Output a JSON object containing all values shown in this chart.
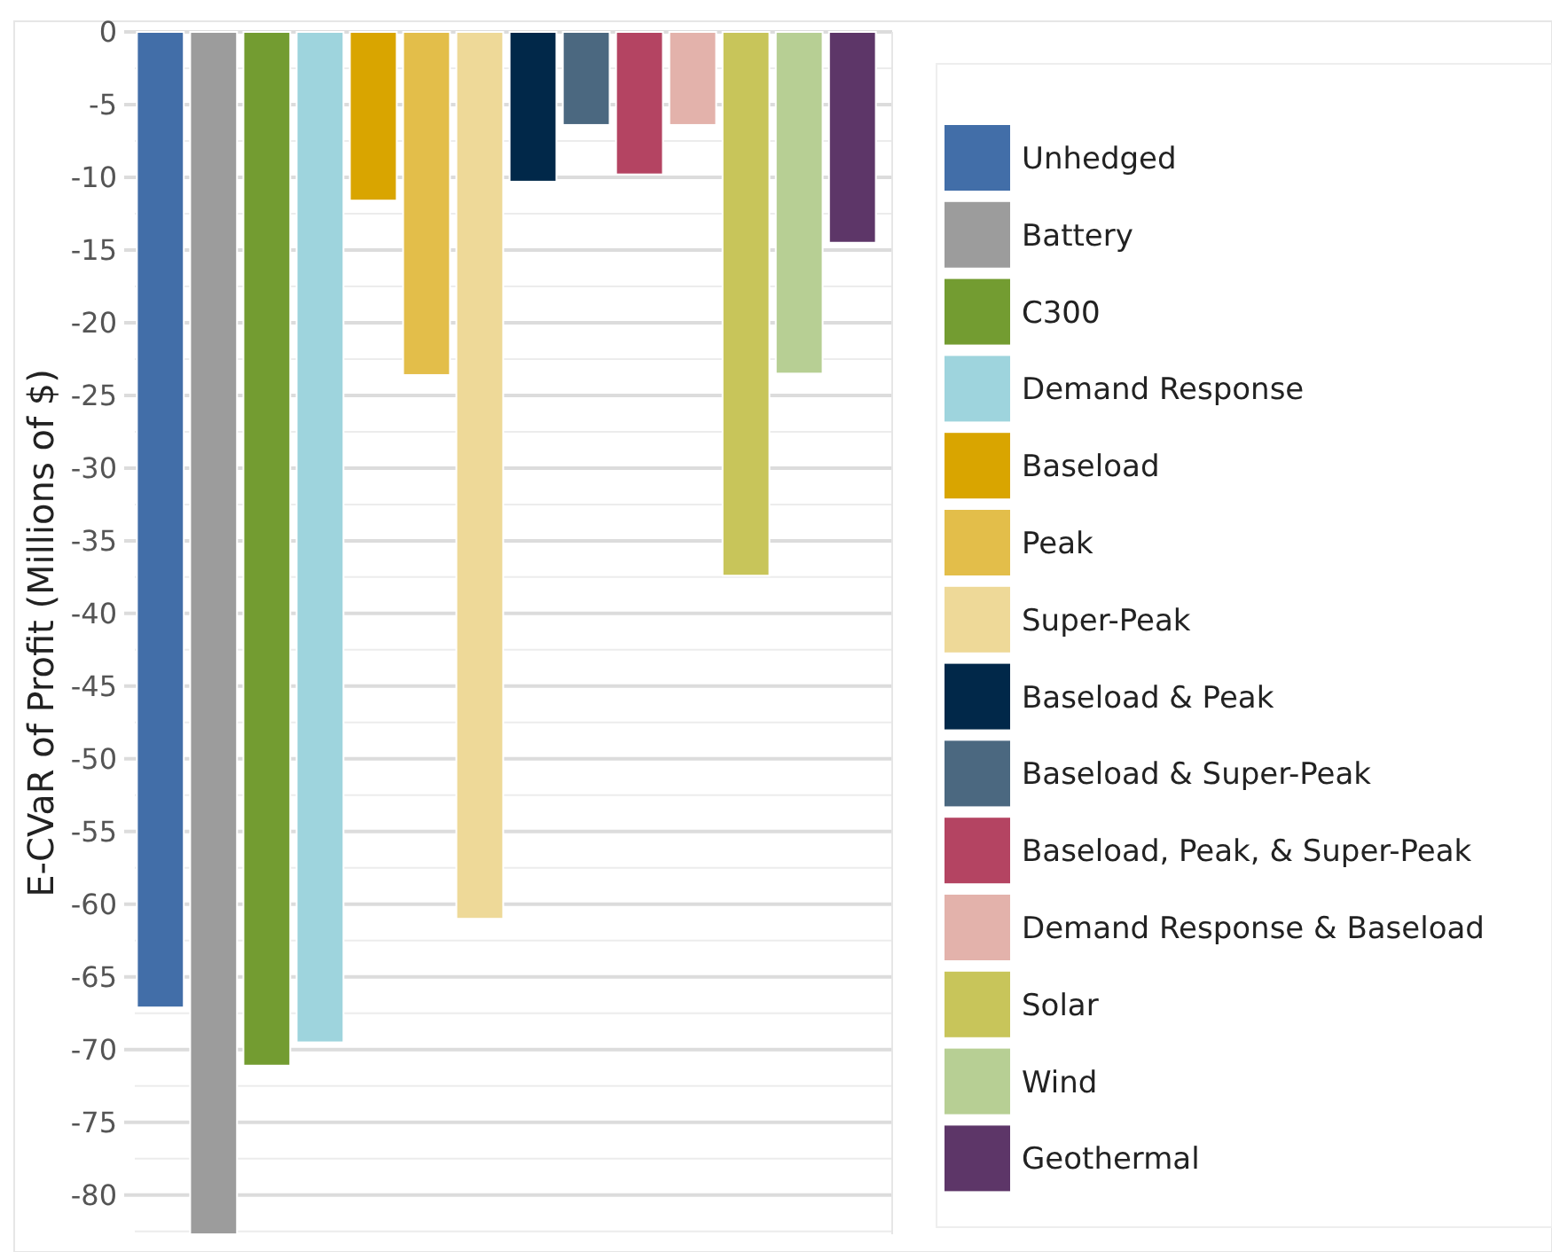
{
  "chart_data": {
    "type": "bar",
    "ylabel": "E-CVaR of Profit (Millions of $)",
    "categories": [
      null
    ],
    "series": [
      {
        "name": "Unhedged",
        "color": "#426ea8",
        "values": [
          -67.1
        ]
      },
      {
        "name": "Battery",
        "color": "#9c9c9c",
        "values": [
          -82.7
        ]
      },
      {
        "name": "C300",
        "color": "#739c31",
        "values": [
          -71.1
        ]
      },
      {
        "name": "Demand Response",
        "color": "#9ed4dd",
        "values": [
          -69.5
        ]
      },
      {
        "name": "Baseload",
        "color": "#d9a500",
        "values": [
          -11.6
        ]
      },
      {
        "name": "Peak",
        "color": "#e3be4a",
        "values": [
          -23.6
        ]
      },
      {
        "name": "Super-Peak",
        "color": "#eed998",
        "values": [
          -61.0
        ]
      },
      {
        "name": "Baseload & Peak",
        "color": "#012849",
        "values": [
          -10.3
        ]
      },
      {
        "name": "Baseload & Super-Peak",
        "color": "#4b6880",
        "values": [
          -6.4
        ]
      },
      {
        "name": "Baseload, Peak, & Super-Peak",
        "color": "#b44462",
        "values": [
          -9.8
        ]
      },
      {
        "name": "Demand Response & Baseload",
        "color": "#e3b2ab",
        "values": [
          -6.4
        ]
      },
      {
        "name": "Solar",
        "color": "#c8c55a",
        "values": [
          -37.4
        ]
      },
      {
        "name": "Wind",
        "color": "#b7cf94",
        "values": [
          -23.5
        ]
      },
      {
        "name": "Geothermal",
        "color": "#5d3668",
        "values": [
          -14.5
        ]
      }
    ],
    "ylim": [
      -82.7,
      0
    ],
    "yticks": [
      0,
      {
        "value": -2.5,
        "label": null
      },
      -5,
      {
        "value": -7.5,
        "label": null
      },
      -10,
      {
        "value": -12.5,
        "label": null
      },
      -15,
      {
        "value": -17.5,
        "label": null
      },
      -20,
      {
        "value": -22.5,
        "label": null
      },
      -25,
      {
        "value": -27.5,
        "label": null
      },
      -30,
      {
        "value": -32.5,
        "label": null
      },
      -35,
      {
        "value": -37.5,
        "label": null
      },
      -40,
      {
        "value": -42.5,
        "label": null
      },
      -45,
      {
        "value": -47.5,
        "label": null
      },
      -50,
      {
        "value": -52.5,
        "label": null
      },
      -55,
      {
        "value": -57.5,
        "label": null
      },
      -60,
      {
        "value": -62.5,
        "label": null
      },
      -65,
      {
        "value": -67.5,
        "label": null
      },
      -70,
      {
        "value": -72.5,
        "label": null
      },
      -75,
      {
        "value": -77.5,
        "label": null
      },
      -80,
      {
        "value": -82.5,
        "label": null
      }
    ],
    "grid": "y",
    "legend": "right"
  }
}
